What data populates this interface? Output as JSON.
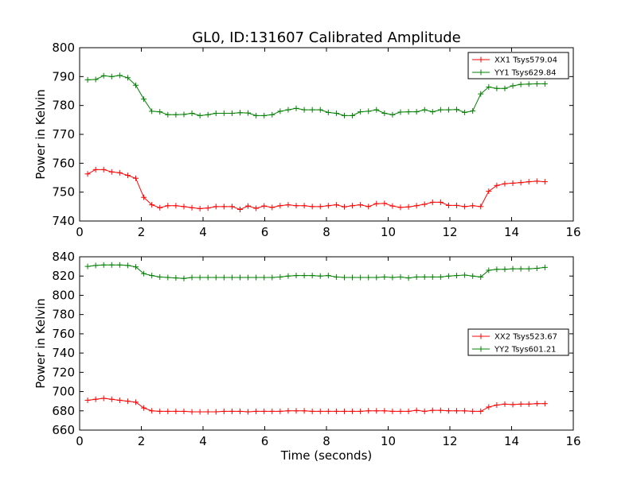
{
  "figure": {
    "title": "GL0, ID:131607 Calibrated Amplitude",
    "xlabel": "Time (seconds)"
  },
  "chart_data": [
    {
      "type": "line",
      "title": "GL0, ID:131607 Calibrated Amplitude",
      "xlabel": "",
      "ylabel": "Power in Kelvin",
      "xlim": [
        0,
        16
      ],
      "ylim": [
        740,
        800
      ],
      "xticks": [
        0,
        2,
        4,
        6,
        8,
        10,
        12,
        14,
        16
      ],
      "yticks": [
        740,
        750,
        760,
        770,
        780,
        790,
        800
      ],
      "grid": false,
      "legend_position": "top-right",
      "x": [
        0.26,
        0.52,
        0.78,
        1.04,
        1.3,
        1.56,
        1.82,
        2.08,
        2.34,
        2.6,
        2.86,
        3.12,
        3.38,
        3.64,
        3.9,
        4.16,
        4.42,
        4.68,
        4.94,
        5.2,
        5.46,
        5.72,
        5.98,
        6.24,
        6.5,
        6.76,
        7.02,
        7.28,
        7.54,
        7.8,
        8.06,
        8.32,
        8.58,
        8.84,
        9.1,
        9.36,
        9.62,
        9.88,
        10.14,
        10.4,
        10.66,
        10.92,
        11.18,
        11.44,
        11.7,
        11.96,
        12.22,
        12.48,
        12.74,
        13.0,
        13.26,
        13.52,
        13.78,
        14.04,
        14.3,
        14.56,
        14.82,
        15.08
      ],
      "series": [
        {
          "name": "XX1 Tsys579.04",
          "color": "#ff0000",
          "values": [
            756.3,
            757.8,
            757.8,
            757.0,
            756.7,
            755.8,
            754.8,
            748.2,
            745.6,
            744.6,
            745.3,
            745.3,
            745.0,
            744.6,
            744.3,
            744.5,
            745.0,
            745.0,
            745.0,
            744.0,
            745.2,
            744.4,
            745.2,
            744.7,
            745.3,
            745.6,
            745.3,
            745.3,
            745.0,
            745.0,
            745.3,
            745.6,
            744.9,
            745.3,
            745.6,
            745.0,
            746.0,
            746.1,
            745.2,
            744.7,
            744.9,
            745.3,
            745.8,
            746.5,
            746.5,
            745.4,
            745.4,
            745.0,
            745.3,
            745.0,
            750.3,
            752.3,
            752.9,
            753.1,
            753.3,
            753.6,
            753.8,
            753.6
          ]
        },
        {
          "name": "YY1 Tsys629.84",
          "color": "#008000",
          "values": [
            788.9,
            789.0,
            790.3,
            790.0,
            790.4,
            789.6,
            787.0,
            782.2,
            778.0,
            777.8,
            776.8,
            776.8,
            776.9,
            777.3,
            776.5,
            776.8,
            777.3,
            777.3,
            777.3,
            777.5,
            777.4,
            776.5,
            776.5,
            776.8,
            778.0,
            778.5,
            779.0,
            778.5,
            778.5,
            778.5,
            777.6,
            777.3,
            776.5,
            776.5,
            777.8,
            778.0,
            778.5,
            777.3,
            776.8,
            777.7,
            777.8,
            777.8,
            778.5,
            777.8,
            778.5,
            778.5,
            778.6,
            777.6,
            778.1,
            784.0,
            786.4,
            785.9,
            785.9,
            786.8,
            787.3,
            787.4,
            787.5,
            787.5
          ]
        }
      ]
    },
    {
      "type": "line",
      "title": "",
      "xlabel": "Time (seconds)",
      "ylabel": "Power in Kelvin",
      "xlim": [
        0,
        16
      ],
      "ylim": [
        660,
        840
      ],
      "xticks": [
        0,
        2,
        4,
        6,
        8,
        10,
        12,
        14,
        16
      ],
      "yticks": [
        660,
        680,
        700,
        720,
        740,
        760,
        780,
        800,
        820,
        840
      ],
      "grid": false,
      "legend_position": "center-right",
      "x": [
        0.26,
        0.52,
        0.78,
        1.04,
        1.3,
        1.56,
        1.82,
        2.08,
        2.34,
        2.6,
        2.86,
        3.12,
        3.38,
        3.64,
        3.9,
        4.16,
        4.42,
        4.68,
        4.94,
        5.2,
        5.46,
        5.72,
        5.98,
        6.24,
        6.5,
        6.76,
        7.02,
        7.28,
        7.54,
        7.8,
        8.06,
        8.32,
        8.58,
        8.84,
        9.1,
        9.36,
        9.62,
        9.88,
        10.14,
        10.4,
        10.66,
        10.92,
        11.18,
        11.44,
        11.7,
        11.96,
        12.22,
        12.48,
        12.74,
        13.0,
        13.26,
        13.52,
        13.78,
        14.04,
        14.3,
        14.56,
        14.82,
        15.08
      ],
      "series": [
        {
          "name": "XX2 Tsys523.67",
          "color": "#ff0000",
          "values": [
            691,
            692,
            693,
            692,
            691,
            690,
            689,
            683,
            680,
            679.5,
            679.5,
            679.5,
            679.5,
            679,
            679,
            679,
            679,
            679.5,
            679.5,
            679.5,
            679,
            679.5,
            679.5,
            679.5,
            679.5,
            680,
            680,
            680,
            679.5,
            679.5,
            679.5,
            679.5,
            679.5,
            679.5,
            679.5,
            680,
            680,
            680,
            679.5,
            679.5,
            679.5,
            680.5,
            679.5,
            680.5,
            680.5,
            680,
            680,
            680,
            679.5,
            679.5,
            684,
            686,
            687,
            686.5,
            687,
            687,
            687.5,
            687.5
          ]
        },
        {
          "name": "YY2 Tsys601.21",
          "color": "#008000",
          "values": [
            830,
            831,
            831.5,
            831.5,
            831.5,
            831,
            829.5,
            822.5,
            820.5,
            819,
            818.5,
            818,
            817.5,
            818.5,
            818.5,
            818.5,
            818.5,
            818.5,
            818.5,
            818.5,
            818.5,
            818.5,
            818.5,
            818.5,
            819,
            820,
            820.5,
            820.5,
            820.5,
            820,
            820.5,
            819,
            818.5,
            818.5,
            818.5,
            818.5,
            818.5,
            819,
            818.5,
            819,
            818,
            819,
            819,
            819,
            819,
            820,
            820.5,
            821,
            820,
            819,
            826,
            827,
            827,
            827.5,
            827.5,
            827.5,
            828,
            829
          ]
        }
      ]
    }
  ]
}
